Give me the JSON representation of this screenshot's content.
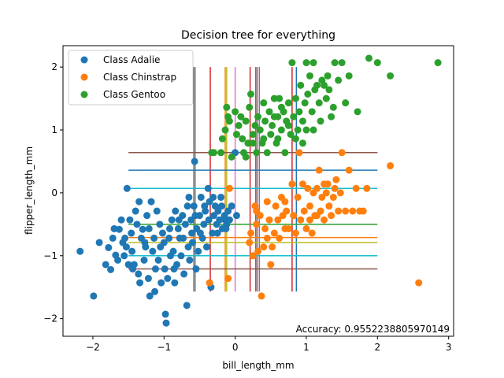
{
  "chart_data": {
    "type": "scatter",
    "title": "Decision tree for everything",
    "xlabel": "bill_length_mm",
    "ylabel": "flipper_length_mm",
    "xlim": [
      -2.42,
      3.07
    ],
    "ylim": [
      -2.28,
      2.34
    ],
    "xticks": [
      -2,
      -1,
      0,
      1,
      2,
      3
    ],
    "yticks": [
      -2,
      -1,
      0,
      1,
      2
    ],
    "annotation": "Accuracy: 0.9552238805970149",
    "legend_position": "upper left",
    "grid": false,
    "series": [
      {
        "name": "Class Adalie",
        "color": "#1f77b4",
        "points": [
          [
            -2.18,
            -0.93
          ],
          [
            -1.99,
            -1.64
          ],
          [
            -1.91,
            -0.79
          ],
          [
            -1.82,
            -1.14
          ],
          [
            -1.78,
            -0.87
          ],
          [
            -1.75,
            -1.22
          ],
          [
            -1.72,
            -0.72
          ],
          [
            -1.68,
            -0.99
          ],
          [
            -1.65,
            -1.07
          ],
          [
            -1.63,
            -0.58
          ],
          [
            -1.6,
            -0.43
          ],
          [
            -1.58,
            -0.79
          ],
          [
            -1.55,
            -0.72
          ],
          [
            -1.53,
            -0.86
          ],
          [
            -1.52,
            0.07
          ],
          [
            -1.5,
            -1.14
          ],
          [
            -1.48,
            -0.43
          ],
          [
            -1.46,
            -0.64
          ],
          [
            -1.45,
            -0.93
          ],
          [
            -1.42,
            -1.14
          ],
          [
            -1.4,
            -0.29
          ],
          [
            -1.38,
            -0.5
          ],
          [
            -1.36,
            -1.29
          ],
          [
            -1.34,
            -1.43
          ],
          [
            -1.32,
            -0.72
          ],
          [
            -1.3,
            -0.58
          ],
          [
            -1.28,
            -1.07
          ],
          [
            -1.26,
            -0.86
          ],
          [
            -1.24,
            -0.36
          ],
          [
            -1.22,
            -1.36
          ],
          [
            -1.2,
            -1.64
          ],
          [
            -1.18,
            -0.14
          ],
          [
            -1.16,
            -0.93
          ],
          [
            -1.14,
            -0.72
          ],
          [
            -1.12,
            -1.21
          ],
          [
            -1.1,
            -0.29
          ],
          [
            -1.08,
            -1.07
          ],
          [
            -1.06,
            -0.5
          ],
          [
            -1.04,
            -1.43
          ],
          [
            -1.02,
            -0.64
          ],
          [
            -1.0,
            -0.79
          ],
          [
            -0.98,
            -1.93
          ],
          [
            -0.97,
            -2.07
          ],
          [
            -0.95,
            -1.36
          ],
          [
            -0.93,
            -0.72
          ],
          [
            -0.91,
            -1.0
          ],
          [
            -0.89,
            -0.43
          ],
          [
            -0.87,
            -0.93
          ],
          [
            -0.85,
            -1.43
          ],
          [
            -0.84,
            -0.29
          ],
          [
            -0.82,
            -1.14
          ],
          [
            -0.8,
            -0.57
          ],
          [
            -0.78,
            -0.72
          ],
          [
            -0.76,
            -1.0
          ],
          [
            -0.74,
            -0.36
          ],
          [
            -0.72,
            -1.29
          ],
          [
            -0.7,
            -0.5
          ],
          [
            -0.68,
            -1.79
          ],
          [
            -0.66,
            -0.86
          ],
          [
            -0.65,
            -0.07
          ],
          [
            -0.64,
            -1.07
          ],
          [
            -0.62,
            -0.43
          ],
          [
            -0.6,
            -0.79
          ],
          [
            -0.58,
            -0.21
          ],
          [
            -0.57,
            0.5
          ],
          [
            -0.55,
            -1.21
          ],
          [
            -0.54,
            -0.57
          ],
          [
            -0.52,
            -0.93
          ],
          [
            -0.5,
            -0.36
          ],
          [
            -0.48,
            -0.07
          ],
          [
            -0.46,
            -0.72
          ],
          [
            -0.44,
            -0.5
          ],
          [
            -0.42,
            -0.29
          ],
          [
            -0.4,
            -0.86
          ],
          [
            -0.38,
            0.07
          ],
          [
            -0.36,
            -0.14
          ],
          [
            -0.34,
            -1.5
          ],
          [
            -0.32,
            -0.64
          ],
          [
            -0.3,
            -0.36
          ],
          [
            -0.28,
            -0.21
          ],
          [
            -0.26,
            -0.5
          ],
          [
            -0.24,
            -0.29
          ],
          [
            -0.22,
            -0.43
          ],
          [
            -0.2,
            -0.07
          ],
          [
            -0.18,
            -0.57
          ],
          [
            -0.15,
            -0.36
          ],
          [
            -0.12,
            -0.5
          ],
          [
            -0.1,
            -0.29
          ],
          [
            -0.08,
            -0.43
          ],
          [
            -0.05,
            -0.21
          ],
          [
            0.0,
            0.64
          ],
          [
            0.02,
            -0.36
          ],
          [
            -1.7,
            -0.57
          ],
          [
            -1.56,
            -1.0
          ],
          [
            -1.44,
            -1.21
          ],
          [
            -1.35,
            -0.14
          ],
          [
            -1.27,
            -0.79
          ],
          [
            -1.21,
            -0.57
          ],
          [
            -1.13,
            -1.57
          ],
          [
            -1.05,
            -0.86
          ],
          [
            -0.99,
            -1.21
          ],
          [
            -0.92,
            -0.57
          ],
          [
            -0.86,
            -1.21
          ],
          [
            -0.79,
            -0.43
          ],
          [
            -0.73,
            -0.72
          ],
          [
            -0.67,
            -0.21
          ],
          [
            -0.61,
            -0.64
          ],
          [
            -0.56,
            -0.36
          ],
          [
            -0.49,
            -0.64
          ],
          [
            -0.43,
            -0.21
          ],
          [
            -0.37,
            -0.43
          ],
          [
            -0.31,
            -0.07
          ],
          [
            -0.25,
            -0.64
          ],
          [
            -0.19,
            -0.21
          ],
          [
            -0.14,
            -0.43
          ],
          [
            -0.13,
            -0.57
          ]
        ]
      },
      {
        "name": "Class Chinstrap",
        "color": "#ff7f0e",
        "points": [
          [
            -0.36,
            -1.43
          ],
          [
            -0.1,
            -1.36
          ],
          [
            -0.08,
            0.07
          ],
          [
            0.2,
            -0.79
          ],
          [
            0.22,
            -0.64
          ],
          [
            0.25,
            -1.0
          ],
          [
            0.28,
            -0.21
          ],
          [
            0.3,
            -0.5
          ],
          [
            0.32,
            -0.93
          ],
          [
            0.35,
            -0.36
          ],
          [
            0.37,
            -1.64
          ],
          [
            0.4,
            -0.86
          ],
          [
            0.42,
            -0.57
          ],
          [
            0.45,
            -0.72
          ],
          [
            0.48,
            -0.43
          ],
          [
            0.5,
            -1.14
          ],
          [
            0.52,
            -0.86
          ],
          [
            0.55,
            -0.64
          ],
          [
            0.57,
            -0.21
          ],
          [
            0.6,
            -0.43
          ],
          [
            0.62,
            -0.72
          ],
          [
            0.65,
            -0.07
          ],
          [
            0.67,
            -0.36
          ],
          [
            0.7,
            -0.57
          ],
          [
            0.72,
            -0.29
          ],
          [
            0.75,
            -0.57
          ],
          [
            0.8,
            0.14
          ],
          [
            0.82,
            -0.36
          ],
          [
            0.85,
            -0.64
          ],
          [
            0.88,
            -0.07
          ],
          [
            0.9,
            0.64
          ],
          [
            0.92,
            -0.43
          ],
          [
            0.95,
            0.14
          ],
          [
            0.97,
            -0.29
          ],
          [
            1.0,
            -0.57
          ],
          [
            1.02,
            0.07
          ],
          [
            1.05,
            -0.21
          ],
          [
            1.08,
            -0.64
          ],
          [
            1.1,
            0.0
          ],
          [
            1.12,
            -0.36
          ],
          [
            1.15,
            0.07
          ],
          [
            1.18,
            0.36
          ],
          [
            1.2,
            -0.29
          ],
          [
            1.22,
            -0.07
          ],
          [
            1.25,
            -0.43
          ],
          [
            1.28,
            0.0
          ],
          [
            1.3,
            0.14
          ],
          [
            1.32,
            -0.21
          ],
          [
            1.35,
            -0.36
          ],
          [
            1.38,
            -0.07
          ],
          [
            1.4,
            0.07
          ],
          [
            1.42,
            0.21
          ],
          [
            1.45,
            -0.29
          ],
          [
            1.48,
            0.0
          ],
          [
            1.5,
            0.64
          ],
          [
            1.55,
            -0.29
          ],
          [
            1.6,
            0.36
          ],
          [
            1.65,
            -0.29
          ],
          [
            1.7,
            0.07
          ],
          [
            1.75,
            -0.29
          ],
          [
            1.8,
            -0.29
          ],
          [
            1.85,
            0.07
          ],
          [
            2.18,
            0.43
          ],
          [
            2.58,
            -1.43
          ],
          [
            0.3,
            -0.29
          ],
          [
            0.45,
            -0.14
          ],
          [
            0.7,
            -0.14
          ],
          [
            1.05,
            -0.43
          ],
          [
            1.15,
            -0.36
          ],
          [
            1.25,
            0.14
          ]
        ]
      },
      {
        "name": "Class Gentoo",
        "color": "#2ca02c",
        "points": [
          [
            -0.33,
            0.64
          ],
          [
            -0.3,
            0.64
          ],
          [
            -0.2,
            0.64
          ],
          [
            -0.18,
            0.86
          ],
          [
            -0.14,
            1.0
          ],
          [
            -0.12,
            1.36
          ],
          [
            -0.1,
            1.21
          ],
          [
            -0.08,
            1.14
          ],
          [
            -0.05,
            0.57
          ],
          [
            0.0,
            1.29
          ],
          [
            0.02,
            0.93
          ],
          [
            0.05,
            1.07
          ],
          [
            0.08,
            1.21
          ],
          [
            0.1,
            0.86
          ],
          [
            0.12,
            0.64
          ],
          [
            0.15,
            1.14
          ],
          [
            0.18,
            0.79
          ],
          [
            0.2,
            1.36
          ],
          [
            0.22,
            1.57
          ],
          [
            0.25,
            0.93
          ],
          [
            0.28,
            1.07
          ],
          [
            0.3,
            0.64
          ],
          [
            0.32,
            1.21
          ],
          [
            0.35,
            1.0
          ],
          [
            0.38,
            0.79
          ],
          [
            0.4,
            1.43
          ],
          [
            0.42,
            1.14
          ],
          [
            0.45,
            0.64
          ],
          [
            0.48,
            1.29
          ],
          [
            0.5,
            0.93
          ],
          [
            0.52,
            1.07
          ],
          [
            0.55,
            1.5
          ],
          [
            0.58,
            0.79
          ],
          [
            0.6,
            1.21
          ],
          [
            0.62,
            1.5
          ],
          [
            0.65,
            1.0
          ],
          [
            0.68,
            1.29
          ],
          [
            0.7,
            0.64
          ],
          [
            0.72,
            1.14
          ],
          [
            0.75,
            1.43
          ],
          [
            0.78,
            0.93
          ],
          [
            0.8,
            2.07
          ],
          [
            0.82,
            1.21
          ],
          [
            0.85,
            1.5
          ],
          [
            0.88,
            1.0
          ],
          [
            0.9,
            1.29
          ],
          [
            0.92,
            1.71
          ],
          [
            0.95,
            0.79
          ],
          [
            0.98,
            1.43
          ],
          [
            1.0,
            2.07
          ],
          [
            1.02,
            1.57
          ],
          [
            1.05,
            1.86
          ],
          [
            1.08,
            1.29
          ],
          [
            1.1,
            2.07
          ],
          [
            1.12,
            1.64
          ],
          [
            1.15,
            1.71
          ],
          [
            1.18,
            1.43
          ],
          [
            1.2,
            1.14
          ],
          [
            1.22,
            1.79
          ],
          [
            1.25,
            1.71
          ],
          [
            1.28,
            1.5
          ],
          [
            1.3,
            1.86
          ],
          [
            1.32,
            1.64
          ],
          [
            1.35,
            1.21
          ],
          [
            1.38,
            1.36
          ],
          [
            1.4,
            2.07
          ],
          [
            1.45,
            1.79
          ],
          [
            1.5,
            2.07
          ],
          [
            1.55,
            1.43
          ],
          [
            1.6,
            1.86
          ],
          [
            1.72,
            1.29
          ],
          [
            1.88,
            2.14
          ],
          [
            2.0,
            2.07
          ],
          [
            2.18,
            1.86
          ],
          [
            2.85,
            2.07
          ],
          [
            0.6,
            0.86
          ],
          [
            0.85,
            0.86
          ],
          [
            1.0,
            1.0
          ],
          [
            1.1,
            1.0
          ],
          [
            0.15,
            0.57
          ],
          [
            0.25,
            0.79
          ],
          [
            0.4,
            0.86
          ],
          [
            0.55,
            1.21
          ],
          [
            0.65,
            1.36
          ],
          [
            0.75,
            1.07
          ],
          [
            0.95,
            1.14
          ]
        ]
      }
    ],
    "boundaries": {
      "vertical": [
        {
          "x": -0.58,
          "y0": -1.57,
          "y1": 2.0,
          "color": "#1f77b4"
        },
        {
          "x": -0.56,
          "y0": -1.57,
          "y1": 2.0,
          "color": "#ff7f0e"
        },
        {
          "x": -0.35,
          "y0": -1.57,
          "y1": 2.0,
          "color": "#d62728"
        },
        {
          "x": -0.14,
          "y0": -1.57,
          "y1": 2.0,
          "color": "#ff7f0e"
        },
        {
          "x": -0.12,
          "y0": -1.57,
          "y1": 2.0,
          "color": "#bcbd22"
        },
        {
          "x": 0.0,
          "y0": -1.57,
          "y1": 2.0,
          "color": "#e377c2"
        },
        {
          "x": 0.21,
          "y0": -1.57,
          "y1": 2.0,
          "color": "#d62728"
        },
        {
          "x": 0.29,
          "y0": -1.57,
          "y1": 2.0,
          "color": "#8c564b"
        },
        {
          "x": 0.31,
          "y0": -1.57,
          "y1": 2.0,
          "color": "#7f7f7f"
        },
        {
          "x": 0.34,
          "y0": -1.57,
          "y1": 2.0,
          "color": "#9467bd"
        },
        {
          "x": 0.8,
          "y0": -1.57,
          "y1": 2.0,
          "color": "#d62728"
        },
        {
          "x": 0.86,
          "y0": -1.57,
          "y1": 2.0,
          "color": "#1f77b4"
        }
      ],
      "horizontal": [
        {
          "y": 0.64,
          "x0": -1.5,
          "x1": 2.0,
          "color": "#8c564b"
        },
        {
          "y": 0.36,
          "x0": -1.5,
          "x1": 2.0,
          "color": "#1f77b4"
        },
        {
          "y": 0.07,
          "x0": -1.5,
          "x1": 2.0,
          "color": "#17becf"
        },
        {
          "y": -0.5,
          "x0": -1.5,
          "x1": 2.0,
          "color": "#2ca02c"
        },
        {
          "y": -0.71,
          "x0": -1.5,
          "x1": 2.0,
          "color": "#ff7f0e"
        },
        {
          "y": -0.79,
          "x0": -1.5,
          "x1": 2.0,
          "color": "#bcbd22"
        },
        {
          "y": -1.0,
          "x0": -1.5,
          "x1": 2.0,
          "color": "#17becf"
        },
        {
          "y": -1.21,
          "x0": -1.5,
          "x1": 2.0,
          "color": "#8c564b"
        }
      ]
    }
  }
}
